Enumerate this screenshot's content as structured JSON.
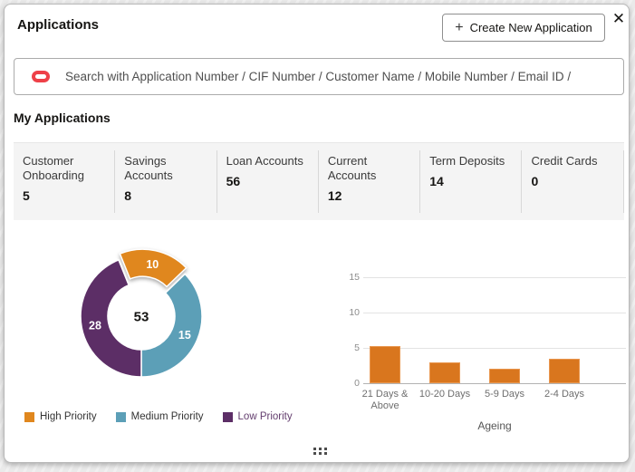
{
  "window": {
    "title": "Applications",
    "close_icon": "✕"
  },
  "header": {
    "create_button_label": "Create New Application",
    "plus_icon": "+"
  },
  "search": {
    "placeholder": "Search with Application Number / CIF Number / Customer Name / Mobile Number / Email ID /"
  },
  "section": {
    "title": "My Applications"
  },
  "stats": [
    {
      "label": "Customer Onboarding",
      "value": "5"
    },
    {
      "label": "Savings Accounts",
      "value": "8"
    },
    {
      "label": "Loan Accounts",
      "value": "56"
    },
    {
      "label": "Current Accounts",
      "value": "12"
    },
    {
      "label": "Term Deposits",
      "value": "14"
    },
    {
      "label": "Credit Cards",
      "value": "0"
    }
  ],
  "chart_data": [
    {
      "type": "pie",
      "subtype": "donut",
      "center_total": 53,
      "legend_position": "bottom",
      "segments": [
        {
          "name": "High Priority",
          "value": 10,
          "color": "#e0871e",
          "start_deg": -22,
          "end_deg": 46,
          "exploded": true,
          "label_color": "#ffffff",
          "legend_text_color": "#333333"
        },
        {
          "name": "Medium Priority",
          "value": 15,
          "color": "#5c9fb7",
          "start_deg": 46,
          "end_deg": 180,
          "exploded": false,
          "label_color": "#ffffff",
          "legend_text_color": "#333333"
        },
        {
          "name": "Low Priority",
          "value": 28,
          "color": "#5c2e66",
          "start_deg": 180,
          "end_deg": 338,
          "exploded": false,
          "label_color": "#ffffff",
          "legend_text_color": "#633d6e"
        }
      ]
    },
    {
      "type": "bar",
      "categories": [
        "21 Days & Above",
        "10-20 Days",
        "5-9 Days",
        "2-4 Days"
      ],
      "values": [
        5.2,
        3,
        2,
        3.5
      ],
      "title": "",
      "xlabel": "Ageing",
      "ylabel": "",
      "ylim": [
        0,
        17
      ],
      "yticks": [
        0,
        5,
        10,
        15
      ],
      "bar_color": "#d9761e",
      "grid": true,
      "legend_position": "none"
    }
  ]
}
